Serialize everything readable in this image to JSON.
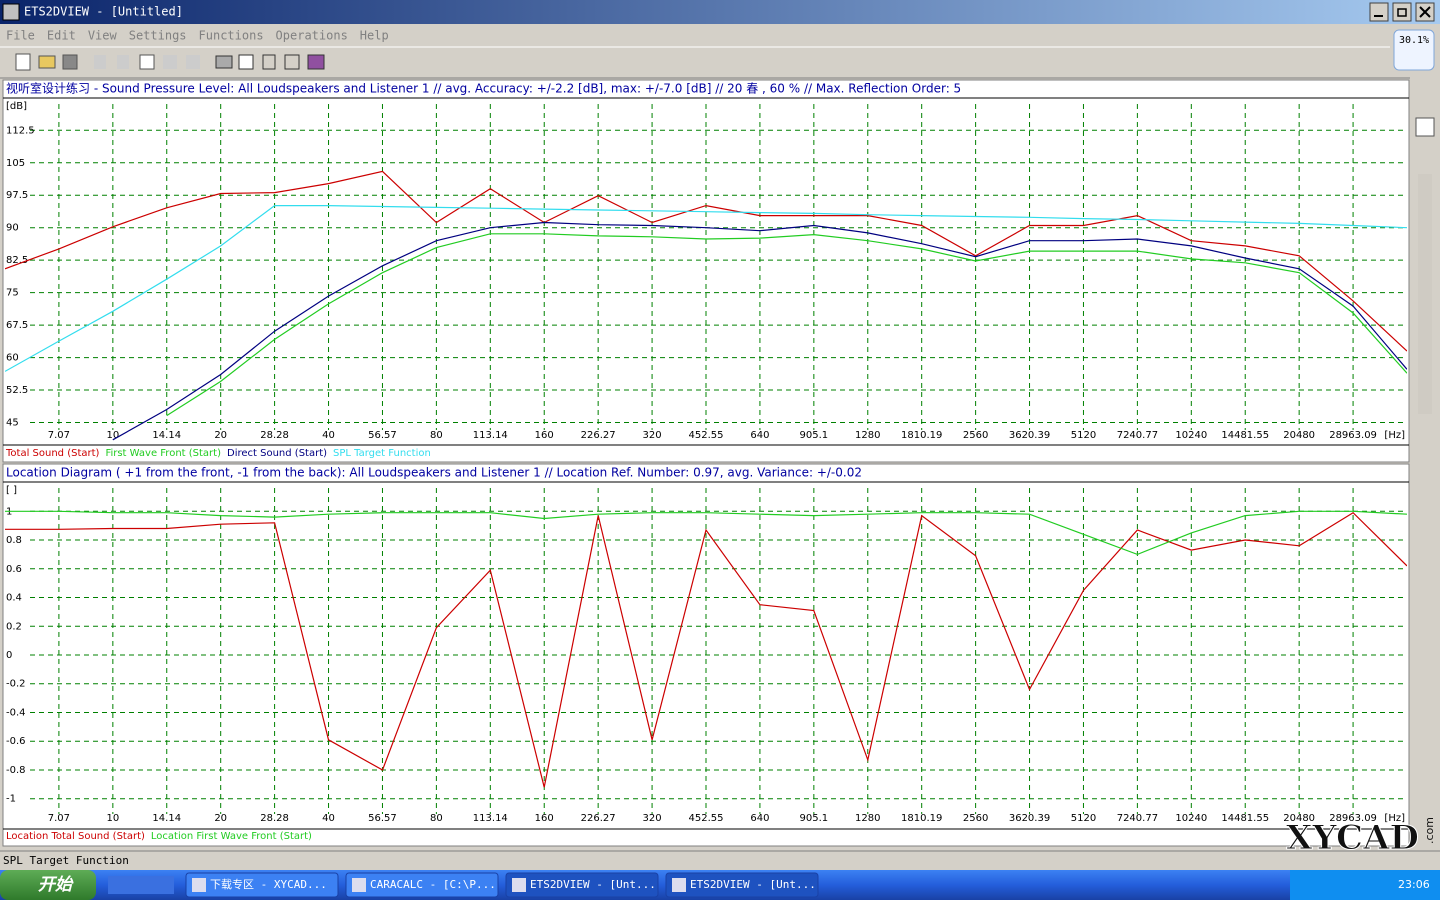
{
  "window": {
    "title": "ETS2DVIEW - [Untitled]",
    "menu": [
      "File",
      "Edit",
      "View",
      "Settings",
      "Functions",
      "Operations",
      "Help"
    ],
    "badge": "30.1%"
  },
  "chart_data": [
    {
      "type": "line",
      "title": "视听室设计练习 - Sound Pressure Level:  All Loudspeakers and Listener 1 // avg. Accuracy: +/-2.2 [dB], max: +/-7.0 [dB] // 20 春 , 60 % // Max. Reflection Order: 5",
      "y_unit": "[dB]",
      "x_unit": "[Hz]",
      "log_x": true,
      "grid": true,
      "xlim": [
        5,
        40960
      ],
      "ylim": [
        40.5,
        119.5
      ],
      "xticks": [
        7.07,
        10,
        14.14,
        20,
        28.28,
        40,
        56.57,
        80,
        113.14,
        160,
        226.27,
        320,
        452.55,
        640,
        905.1,
        1280,
        1810.19,
        2560,
        3620.39,
        5120,
        7240.77,
        10240,
        14481.55,
        20480,
        28963.09
      ],
      "yticks": [
        112.5,
        105,
        97.5,
        90,
        82.5,
        75,
        67.5,
        60,
        52.5,
        45
      ],
      "x": [
        5,
        7.07,
        10,
        14.14,
        20,
        28.28,
        40,
        56.57,
        80,
        113.14,
        160,
        226.27,
        320,
        452.55,
        640,
        905.1,
        1280,
        1810.19,
        2560,
        3620.39,
        5120,
        7240.77,
        10240,
        14481.55,
        20480,
        28963.09,
        40960
      ],
      "series": [
        {
          "name": "Total Sound (Start)",
          "color": "#cc0000",
          "values": [
            80.5,
            85.1,
            90.2,
            94.6,
            97.9,
            98.1,
            100.2,
            103.0,
            91.2,
            99.0,
            91.2,
            97.4,
            91.2,
            95.1,
            92.8,
            92.8,
            92.8,
            90.5,
            83.5,
            90.5,
            90.5,
            92.8,
            87.0,
            85.8,
            83.5,
            73.1,
            61.5
          ]
        },
        {
          "name": "First Wave Front (Start)",
          "color": "#22cc22",
          "values": [
            null,
            null,
            null,
            46.6,
            54.5,
            64.2,
            72.4,
            79.6,
            85.4,
            88.6,
            88.6,
            88.1,
            87.9,
            87.4,
            87.6,
            88.4,
            87.0,
            85.1,
            82.3,
            84.6,
            84.6,
            84.6,
            82.8,
            81.9,
            79.6,
            70.3,
            56.4
          ]
        },
        {
          "name": "Direct Sound (Start)",
          "color": "#000080",
          "values": [
            null,
            null,
            41.0,
            48.0,
            56.1,
            66.1,
            74.2,
            81.2,
            87.0,
            90.0,
            91.2,
            90.7,
            90.5,
            90.0,
            89.3,
            90.5,
            88.8,
            86.3,
            83.3,
            87.0,
            87.0,
            87.4,
            85.8,
            83.0,
            80.5,
            71.9,
            57.3
          ]
        },
        {
          "name": "SPL Target Function",
          "color": "#33ddee",
          "values": [
            56.8,
            63.8,
            70.7,
            78.1,
            85.8,
            95.1,
            95.1,
            94.9,
            94.7,
            94.5,
            94.3,
            94.1,
            93.9,
            93.7,
            93.5,
            93.3,
            93.0,
            92.8,
            92.6,
            92.4,
            92.1,
            91.9,
            91.6,
            91.3,
            91.0,
            90.5,
            90.0
          ]
        }
      ]
    },
    {
      "type": "line",
      "title": "Location Diagram ( +1 from the front, -1 from the back):  All Loudspeakers and Listener 1 // Location Ref. Number: 0.97, avg. Variance: +/-0.02",
      "y_unit": "[ ]",
      "x_unit": "[Hz]",
      "log_x": true,
      "grid": true,
      "xlim": [
        5,
        40960
      ],
      "ylim": [
        -1.19,
        1.19
      ],
      "xticks": [
        7.07,
        10,
        14.14,
        20,
        28.28,
        40,
        56.57,
        80,
        113.14,
        160,
        226.27,
        320,
        452.55,
        640,
        905.1,
        1280,
        1810.19,
        2560,
        3620.39,
        5120,
        7240.77,
        10240,
        14481.55,
        20480,
        28963.09
      ],
      "yticks": [
        1,
        0.8,
        0.6,
        0.4,
        0.2,
        0,
        -0.2,
        -0.4,
        -0.6,
        -0.8,
        -1
      ],
      "x": [
        5,
        7.07,
        10,
        14.14,
        20,
        28.28,
        40,
        56.57,
        80,
        113.14,
        160,
        226.27,
        320,
        452.55,
        640,
        905.1,
        1280,
        1810.19,
        2560,
        3620.39,
        5120,
        7240.77,
        10240,
        14481.55,
        20480,
        28963.09,
        40960
      ],
      "series": [
        {
          "name": "Location Total Sound (Start)",
          "color": "#cc0000",
          "values": [
            0.875,
            0.875,
            0.88,
            0.88,
            0.91,
            0.92,
            -0.59,
            -0.8,
            0.19,
            0.59,
            -0.92,
            0.97,
            -0.59,
            0.87,
            0.35,
            0.31,
            -0.73,
            0.97,
            0.69,
            -0.24,
            0.45,
            0.87,
            0.73,
            0.8,
            0.76,
            0.99,
            0.62
          ]
        },
        {
          "name": "Location First Wave Front (Start)",
          "color": "#22cc22",
          "values": [
            1.0,
            1.0,
            0.99,
            0.99,
            0.97,
            0.96,
            0.98,
            0.99,
            0.99,
            0.99,
            0.95,
            0.98,
            0.99,
            0.99,
            0.98,
            0.97,
            0.98,
            0.99,
            0.99,
            0.98,
            0.84,
            0.7,
            0.85,
            0.97,
            1.0,
            1.0,
            0.98
          ]
        }
      ]
    }
  ],
  "status_bar": "SPL Target Function",
  "taskbar": {
    "start": "开始",
    "items": [
      "下载专区 - XYCAD...",
      "CARACALC - [C:\\P...",
      "ETS2DVIEW - [Unt...",
      "ETS2DVIEW - [Unt..."
    ],
    "clock": "23:06"
  },
  "watermark": {
    "text": "XYCAD",
    "suffix": ".com"
  }
}
